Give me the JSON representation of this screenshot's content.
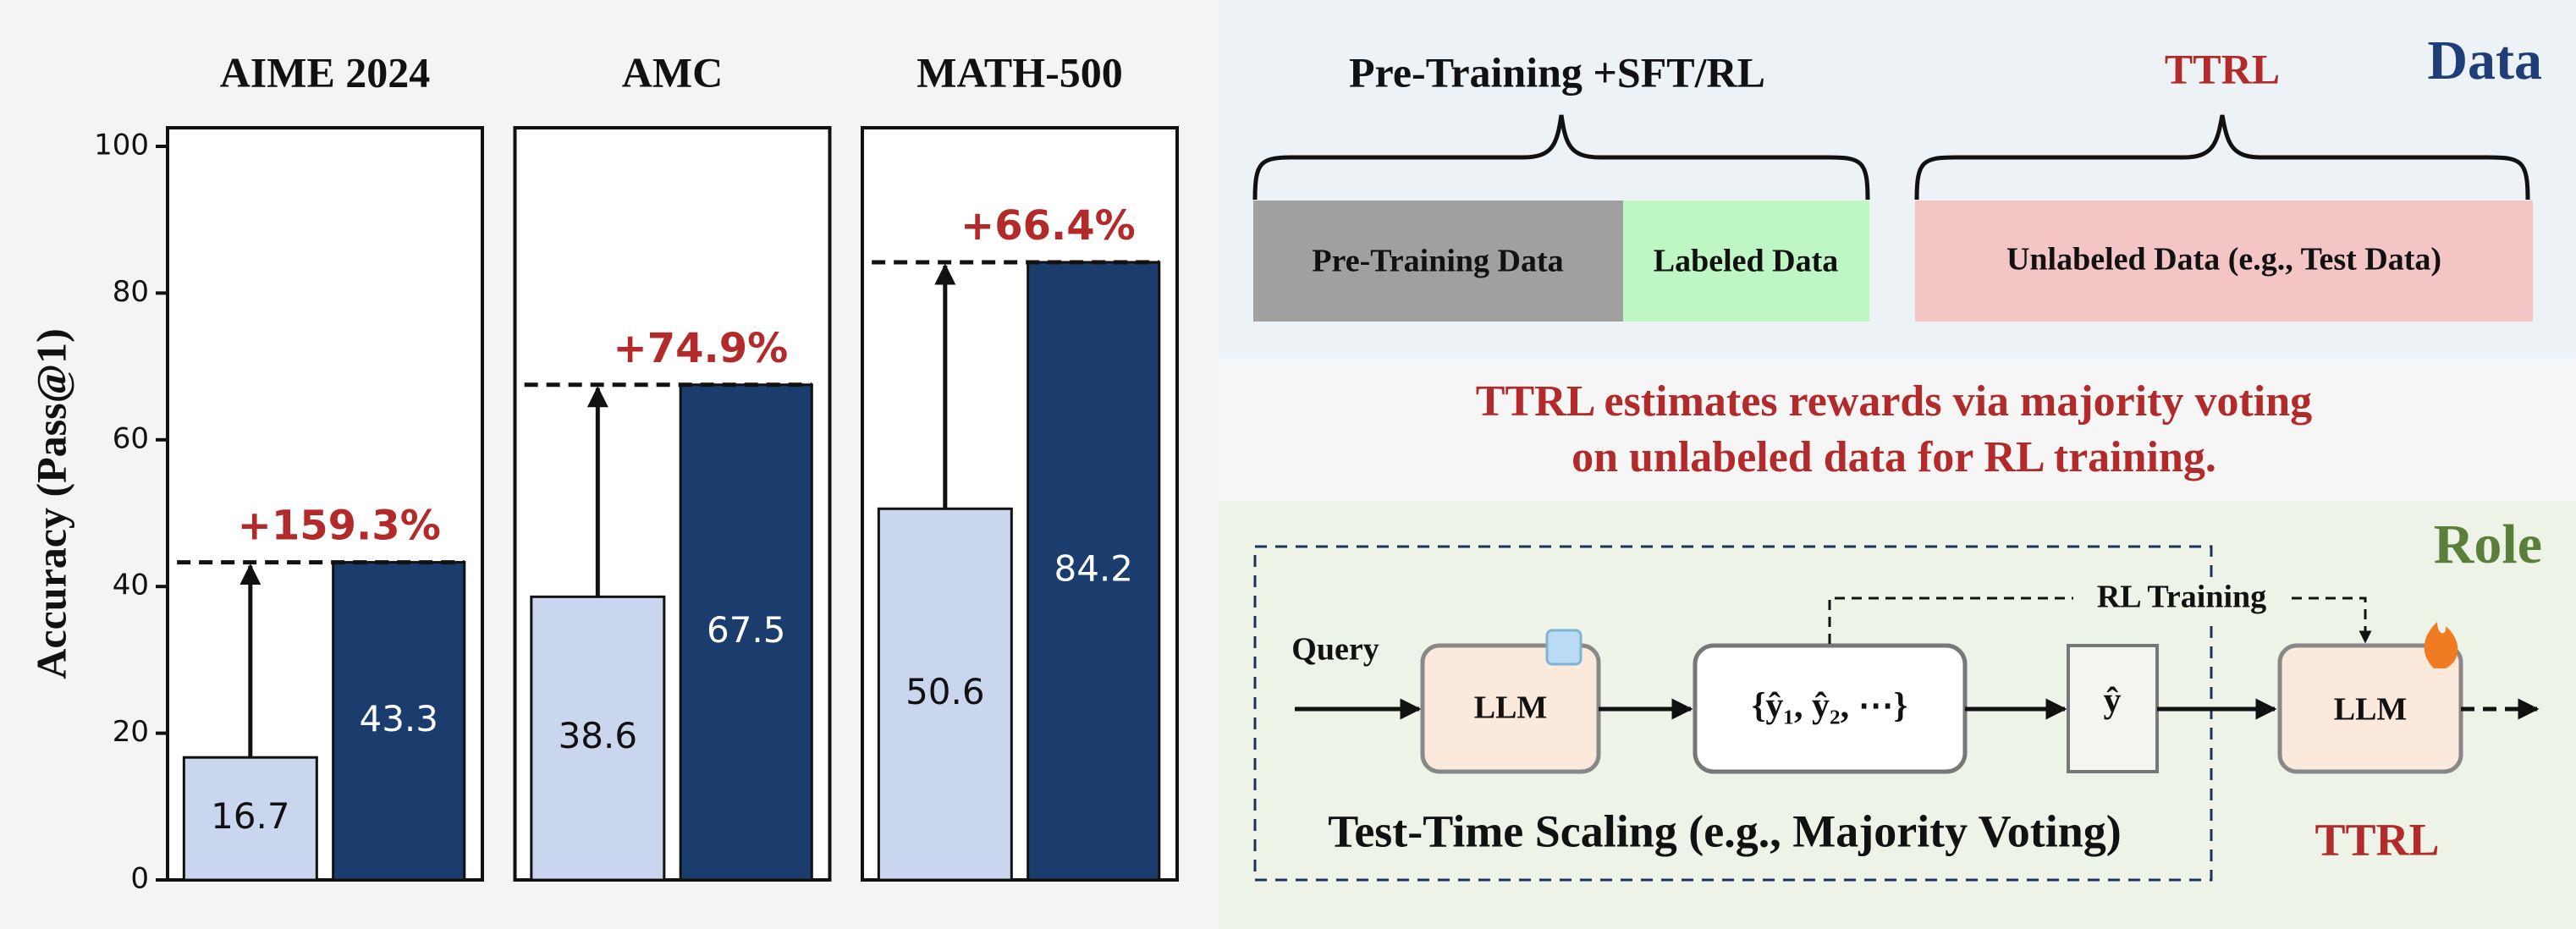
{
  "chart_data": [
    {
      "type": "bar",
      "title": "AIME 2024",
      "y_label": "Accuracy (Pass@1)",
      "categories": [
        null,
        null
      ],
      "values": [
        16.7,
        43.3
      ],
      "colors": [
        "#c9d6ee",
        "#1b3d6e"
      ],
      "annotation": "+159.3%",
      "ylim": [
        0,
        100
      ],
      "yticks": [
        0,
        20,
        40,
        60,
        80,
        100
      ]
    },
    {
      "type": "bar",
      "title": "AMC",
      "categories": [
        null,
        null
      ],
      "values": [
        38.6,
        67.5
      ],
      "colors": [
        "#c9d6ee",
        "#1b3d6e"
      ],
      "annotation": "+74.9%",
      "ylim": [
        0,
        100
      ]
    },
    {
      "type": "bar",
      "title": "MATH-500",
      "categories": [
        null,
        null
      ],
      "values": [
        50.6,
        84.2
      ],
      "colors": [
        "#c9d6ee",
        "#1b3d6e"
      ],
      "annotation": "+66.4%",
      "ylim": [
        0,
        100
      ]
    }
  ],
  "data_panel": {
    "label": "Data",
    "left_group": "Pre-Training +SFT/RL",
    "right_group": "TTRL",
    "boxes": [
      "Pre-Training Data",
      "Labeled Data",
      "Unlabeled Data (e.g., Test Data)"
    ]
  },
  "caption": [
    "TTRL estimates rewards via majority voting",
    "on unlabeled data for RL training."
  ],
  "role_panel": {
    "label": "Role",
    "query": "Query",
    "llm_frozen": "LLM",
    "samples": "{ŷ₁, ŷ₂, ⋯}",
    "answer": "ŷ",
    "rl_training": "RL Training",
    "llm_trained": "LLM",
    "tts_label": "Test-Time Scaling (e.g., Majority Voting)",
    "ttrl_label": "TTRL"
  }
}
